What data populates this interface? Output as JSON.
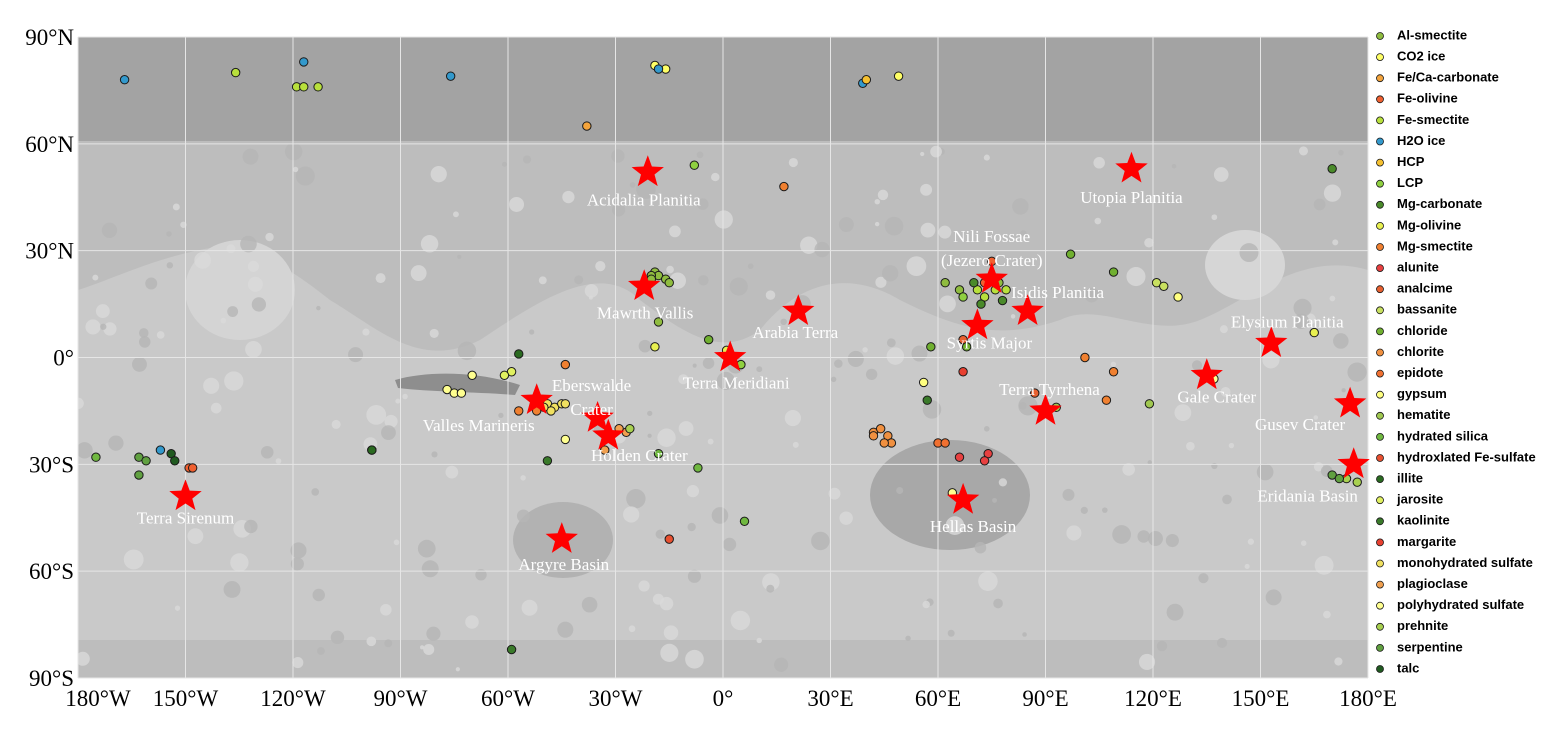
{
  "chart_data": {
    "type": "scatter",
    "grid": true,
    "xlim": [
      -180,
      180
    ],
    "ylim": [
      -90,
      90
    ],
    "xticks": [
      {
        "value": -180,
        "label": "180°W"
      },
      {
        "value": -150,
        "label": "150°W"
      },
      {
        "value": -120,
        "label": "120°W"
      },
      {
        "value": -90,
        "label": "90°W"
      },
      {
        "value": -60,
        "label": "60°W"
      },
      {
        "value": -30,
        "label": "30°W"
      },
      {
        "value": 0,
        "label": "0°"
      },
      {
        "value": 30,
        "label": "30°E"
      },
      {
        "value": 60,
        "label": "60°E"
      },
      {
        "value": 90,
        "label": "90°E"
      },
      {
        "value": 120,
        "label": "120°E"
      },
      {
        "value": 150,
        "label": "150°E"
      },
      {
        "value": 180,
        "label": "180°E"
      }
    ],
    "yticks": [
      {
        "value": 90,
        "label": "90°N"
      },
      {
        "value": 60,
        "label": "60°N"
      },
      {
        "value": 30,
        "label": "30°N"
      },
      {
        "value": 0,
        "label": "0°"
      },
      {
        "value": -30,
        "label": "30°S"
      },
      {
        "value": -60,
        "label": "60°S"
      },
      {
        "value": -90,
        "label": "90°S"
      }
    ],
    "series": [
      {
        "name": "Al-smectite",
        "color": "#8fbc3f",
        "x": [
          -19,
          -18,
          -16,
          -20,
          -15,
          -20,
          -18,
          77,
          66,
          62
        ],
        "y": [
          24,
          23,
          22,
          23,
          21,
          22,
          10,
          21,
          19,
          21
        ]
      },
      {
        "name": "CO2 ice",
        "color": "#ffff66",
        "x": [
          -19,
          -16,
          49
        ],
        "y": [
          82,
          81,
          79
        ]
      },
      {
        "name": "Fe/Ca-carbonate",
        "color": "#f4a43c",
        "x": [
          -38
        ],
        "y": [
          65
        ]
      },
      {
        "name": "Fe-olivine",
        "color": "#f06030",
        "x": [
          75,
          73,
          -149,
          -148
        ],
        "y": [
          27,
          21,
          -31,
          -31
        ]
      },
      {
        "name": "Fe-smectite",
        "color": "#b8e03c",
        "x": [
          -136,
          -119,
          -117,
          -113,
          71,
          73,
          76,
          79
        ],
        "y": [
          80,
          76,
          76,
          76,
          19,
          17,
          19,
          19
        ]
      },
      {
        "name": "H2O ice",
        "color": "#3399cc",
        "x": [
          -167,
          -117,
          -76,
          -18,
          39,
          -157
        ],
        "y": [
          78,
          83,
          79,
          81,
          77,
          -26
        ]
      },
      {
        "name": "HCP",
        "color": "#f5c030",
        "x": [
          40
        ],
        "y": [
          78
        ]
      },
      {
        "name": "LCP",
        "color": "#8fd040",
        "x": [
          -8,
          5,
          67
        ],
        "y": [
          54,
          -2,
          17
        ]
      },
      {
        "name": "Mg-carbonate",
        "color": "#4a8a2a",
        "x": [
          170,
          70,
          72,
          78
        ],
        "y": [
          53,
          21,
          15,
          16
        ]
      },
      {
        "name": "Mg-olivine",
        "color": "#e8f050",
        "x": [
          -19,
          1,
          165
        ],
        "y": [
          3,
          2,
          7
        ]
      },
      {
        "name": "Mg-smectite",
        "color": "#f08030",
        "x": [
          17,
          101,
          109,
          107,
          -44,
          -57,
          -52
        ],
        "y": [
          48,
          0,
          -4,
          -12,
          -2,
          -15,
          -15
        ]
      },
      {
        "name": "alunite",
        "color": "#e84040",
        "x": [
          66,
          74,
          73
        ],
        "y": [
          -28,
          -27,
          -29
        ]
      },
      {
        "name": "analcime",
        "color": "#e86030",
        "x": [
          67,
          87
        ],
        "y": [
          5,
          -10
        ]
      },
      {
        "name": "bassanite",
        "color": "#c8e060",
        "x": [
          121,
          123
        ],
        "y": [
          21,
          20
        ]
      },
      {
        "name": "chloride",
        "color": "#70b030",
        "x": [
          -4,
          68,
          58,
          97,
          109
        ],
        "y": [
          5,
          3,
          3,
          29,
          24
        ]
      },
      {
        "name": "chlorite",
        "color": "#f09040",
        "x": [
          42,
          44,
          42,
          46,
          47,
          45
        ],
        "y": [
          -21,
          -20,
          -22,
          -22,
          -24,
          -24
        ]
      },
      {
        "name": "epidote",
        "color": "#f07030",
        "x": [
          60,
          62
        ],
        "y": [
          -24,
          -24
        ]
      },
      {
        "name": "gypsum",
        "color": "#ffff80",
        "x": [
          56,
          127
        ],
        "y": [
          -7,
          17
        ]
      },
      {
        "name": "hematite",
        "color": "#a0c850",
        "x": [
          119,
          93
        ],
        "y": [
          -13,
          -14
        ]
      },
      {
        "name": "hydrated silica",
        "color": "#70b840",
        "x": [
          -18,
          -7,
          6,
          -175
        ],
        "y": [
          -27,
          -31,
          -46,
          -28
        ]
      },
      {
        "name": "hydroxlated Fe-sulfate",
        "color": "#e85030",
        "x": [
          -15,
          -32
        ],
        "y": [
          -51,
          -22
        ]
      },
      {
        "name": "illite",
        "color": "#2a6a20",
        "x": [
          -57,
          -98,
          -98
        ],
        "y": [
          1,
          -26,
          -26
        ]
      },
      {
        "name": "jarosite",
        "color": "#e0f060",
        "x": [
          -59,
          -61
        ],
        "y": [
          -4,
          -5
        ]
      },
      {
        "name": "kaolinite",
        "color": "#3a7a2a",
        "x": [
          -49,
          -59,
          57
        ],
        "y": [
          -29,
          -82,
          -12
        ]
      },
      {
        "name": "margarite",
        "color": "#e84030",
        "x": [
          67
        ],
        "y": [
          -4
        ]
      },
      {
        "name": "monohydrated sulfate",
        "color": "#f0e060",
        "x": [
          -49,
          -47,
          -45,
          -44,
          -48,
          -50
        ],
        "y": [
          -13,
          -14,
          -13,
          -13,
          -15,
          -14
        ]
      },
      {
        "name": "plagioclase",
        "color": "#f0a050",
        "x": [
          -33,
          -29,
          -27
        ],
        "y": [
          -26,
          -20,
          -21
        ]
      },
      {
        "name": "polyhydrated sulfate",
        "color": "#ffff90",
        "x": [
          -70,
          -77,
          -75,
          -73,
          -44,
          64,
          136,
          137
        ],
        "y": [
          -5,
          -9,
          -10,
          -10,
          -23,
          -38,
          -5,
          -6
        ]
      },
      {
        "name": "prehnite",
        "color": "#a8d050",
        "x": [
          -26,
          174,
          177
        ],
        "y": [
          -20,
          -34,
          -35
        ]
      },
      {
        "name": "serpentine",
        "color": "#60a040",
        "x": [
          -163,
          -161,
          -163,
          170,
          172
        ],
        "y": [
          -28,
          -29,
          -33,
          -33,
          -34
        ]
      },
      {
        "name": "talc",
        "color": "#205a20",
        "x": [
          -154,
          -153
        ],
        "y": [
          -27,
          -29
        ]
      }
    ],
    "marker_color": "#ff0000",
    "annotations": [
      {
        "label": [
          "Acidalia Planitia"
        ],
        "x": -21,
        "y": 52
      },
      {
        "label": [
          "Utopia Planitia"
        ],
        "x": 114,
        "y": 53
      },
      {
        "label": [
          "Mawrth Vallis"
        ],
        "x": -22,
        "y": 20
      },
      {
        "label": [
          "Nili Fossae",
          "(Jezero Crater)"
        ],
        "x": 75,
        "y": 22
      },
      {
        "label": [
          "Isidis Planitia"
        ],
        "x": 85,
        "y": 13
      },
      {
        "label": [
          "Arabia Terra"
        ],
        "x": 21,
        "y": 13
      },
      {
        "label": [
          "Syrtis Major"
        ],
        "x": 71,
        "y": 9
      },
      {
        "label": [
          "Elysium Planitia"
        ],
        "x": 153,
        "y": 4
      },
      {
        "label": [
          "Terra Meridiani"
        ],
        "x": 2,
        "y": 0
      },
      {
        "label": [
          "Eberswalde",
          "Crater"
        ],
        "x": -35,
        "y": -17
      },
      {
        "label": [
          "Valles Marineris"
        ],
        "x": -52,
        "y": -12
      },
      {
        "label": [
          "Holden Crater"
        ],
        "x": -32,
        "y": -22
      },
      {
        "label": [
          "Terra Tyrrhena"
        ],
        "x": 90,
        "y": -15
      },
      {
        "label": [
          "Gale Crater"
        ],
        "x": 135,
        "y": -5
      },
      {
        "label": [
          "Gusev Crater"
        ],
        "x": 175,
        "y": -13
      },
      {
        "label": [
          "Eridania Basin"
        ],
        "x": 176,
        "y": -30
      },
      {
        "label": [
          "Terra Sirenum"
        ],
        "x": -150,
        "y": -39
      },
      {
        "label": [
          "Argyre Basin"
        ],
        "x": -45,
        "y": -51
      },
      {
        "label": [
          "Hellas Basin"
        ],
        "x": 67,
        "y": -40
      }
    ]
  }
}
